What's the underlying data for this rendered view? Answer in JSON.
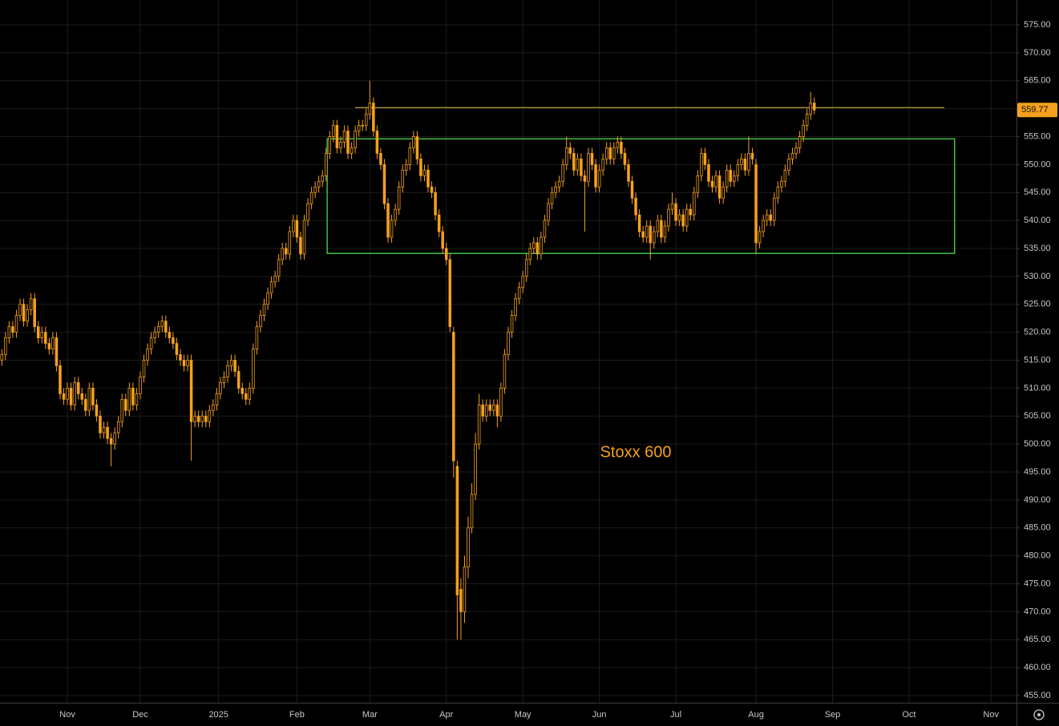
{
  "chart_data": {
    "type": "candlestick",
    "color": "#f5a01e",
    "background": "#000000",
    "grid": true,
    "grid_color": "#1c1c1c",
    "annotation": {
      "text": "Stoxx 600",
      "x": 174,
      "y": 498.4,
      "color": "#f5a01e"
    },
    "hline": {
      "value": 560.2,
      "x": [
        97,
        258.7
      ],
      "color": "#e8c43a"
    },
    "range_box": {
      "ylim": [
        534.1,
        554.6
      ],
      "x": [
        89.3,
        261.5
      ],
      "color": "#3fbf3f"
    },
    "xlim": [
      -0.5,
      278.5
    ],
    "ylim": [
      453.71,
      579.44
    ],
    "xticks": [
      {
        "value": 18,
        "label": "Nov"
      },
      {
        "value": 38,
        "label": "Dec"
      },
      {
        "value": 59.5,
        "label": "2025"
      },
      {
        "value": 81,
        "label": "Feb"
      },
      {
        "value": 101,
        "label": "Mar"
      },
      {
        "value": 122,
        "label": "Apr"
      },
      {
        "value": 143,
        "label": "May"
      },
      {
        "value": 164,
        "label": "Jun"
      },
      {
        "value": 185,
        "label": "Jul"
      },
      {
        "value": 207,
        "label": "Aug"
      },
      {
        "value": 228,
        "label": "Sep"
      },
      {
        "value": 249,
        "label": "Oct"
      },
      {
        "value": 271.5,
        "label": "Nov"
      }
    ],
    "yticks": [
      {
        "value": 455,
        "label": "455.00"
      },
      {
        "value": 460,
        "label": "460.00"
      },
      {
        "value": 465,
        "label": "465.00"
      },
      {
        "value": 470,
        "label": "470.00"
      },
      {
        "value": 475,
        "label": "475.00"
      },
      {
        "value": 480,
        "label": "480.00"
      },
      {
        "value": 485,
        "label": "485.00"
      },
      {
        "value": 490,
        "label": "490.00"
      },
      {
        "value": 495,
        "label": "495.00"
      },
      {
        "value": 500,
        "label": "500.00"
      },
      {
        "value": 505,
        "label": "505.00"
      },
      {
        "value": 510,
        "label": "510.00"
      },
      {
        "value": 515,
        "label": "515.00"
      },
      {
        "value": 520,
        "label": "520.00"
      },
      {
        "value": 525,
        "label": "525.00"
      },
      {
        "value": 530,
        "label": "530.00"
      },
      {
        "value": 535,
        "label": "535.00"
      },
      {
        "value": 540,
        "label": "540.00"
      },
      {
        "value": 545,
        "label": "545.00"
      },
      {
        "value": 550,
        "label": "550.00"
      },
      {
        "value": 555,
        "label": "555.00"
      },
      {
        "value": 560,
        "label": "560.00"
      },
      {
        "value": 565,
        "label": "565.00"
      },
      {
        "value": 570,
        "label": "570.00"
      },
      {
        "value": 575,
        "label": "575.00"
      }
    ],
    "open": [
      515,
      516,
      519,
      521,
      520,
      523,
      525,
      522,
      524,
      526,
      521,
      519,
      520,
      518,
      517,
      519,
      514,
      509,
      508,
      510,
      507,
      511,
      509,
      508,
      506,
      510,
      507,
      505,
      502,
      503,
      501,
      500,
      502,
      504,
      508,
      506,
      510,
      507,
      509,
      512,
      515,
      517,
      519,
      520,
      521,
      522,
      520,
      519,
      518,
      516,
      515,
      514,
      515,
      504,
      505,
      504,
      505,
      504,
      506,
      507,
      509,
      511,
      512,
      514,
      515,
      513,
      510,
      509,
      508,
      510,
      517,
      521,
      523,
      525,
      527,
      529,
      530,
      533,
      535,
      534,
      538,
      540,
      537,
      534,
      540,
      543,
      545,
      546,
      547,
      548,
      552,
      555,
      557,
      553,
      554,
      556,
      552,
      553,
      556,
      557,
      557,
      559,
      561,
      556,
      552,
      550,
      543,
      537,
      540,
      542,
      546,
      549,
      550,
      553,
      555,
      551,
      548,
      549,
      546,
      545,
      541,
      538,
      535,
      533,
      520,
      496,
      474,
      470,
      478,
      485,
      491,
      500,
      507,
      505,
      507,
      506,
      507,
      505,
      510,
      516,
      520,
      523,
      526,
      528,
      530,
      533,
      535,
      536,
      534,
      537,
      540,
      543,
      545,
      546,
      547,
      550,
      553,
      552,
      549,
      551,
      548,
      547,
      552,
      550,
      546,
      549,
      551,
      553,
      551,
      553,
      554,
      552,
      550,
      547,
      544,
      541,
      538,
      537,
      539,
      536,
      538,
      540,
      537,
      539,
      542,
      543,
      540,
      541,
      539,
      542,
      541,
      545,
      548,
      552,
      550,
      547,
      546,
      548,
      544,
      546,
      549,
      547,
      548,
      550,
      551,
      549,
      552,
      550,
      536,
      538,
      540,
      541,
      540,
      544,
      546,
      547,
      549,
      551,
      552,
      553,
      555,
      557,
      559,
      561
    ],
    "high": [
      517,
      520,
      522,
      522,
      524,
      526,
      526,
      525,
      527,
      527,
      522,
      521,
      521,
      519,
      520,
      520,
      515,
      510,
      511,
      511,
      512,
      512,
      510,
      509,
      511,
      511,
      508,
      506,
      504,
      504,
      502,
      503,
      505,
      509,
      509,
      511,
      511,
      510,
      513,
      516,
      518,
      520,
      521,
      522,
      523,
      523,
      521,
      520,
      519,
      517,
      516,
      516,
      516,
      506,
      506,
      506,
      506,
      507,
      508,
      510,
      512,
      513,
      515,
      516,
      516,
      514,
      511,
      510,
      511,
      518,
      522,
      524,
      526,
      528,
      530,
      531,
      534,
      536,
      536,
      539,
      541,
      541,
      538,
      541,
      544,
      546,
      547,
      548,
      549,
      553,
      556,
      558,
      558,
      555,
      557,
      557,
      554,
      557,
      558,
      558,
      560,
      565,
      562,
      557,
      553,
      551,
      544,
      541,
      543,
      547,
      550,
      551,
      554,
      556,
      556,
      552,
      550,
      550,
      547,
      546,
      542,
      539,
      536,
      534,
      521,
      497,
      476,
      480,
      487,
      493,
      502,
      509,
      508,
      508,
      508,
      508,
      508,
      511,
      517,
      521,
      524,
      527,
      529,
      531,
      534,
      536,
      537,
      537,
      538,
      541,
      544,
      546,
      547,
      548,
      551,
      555,
      554,
      553,
      552,
      552,
      549,
      553,
      553,
      551,
      550,
      552,
      554,
      554,
      554,
      555,
      555,
      553,
      551,
      548,
      545,
      542,
      539,
      540,
      540,
      539,
      541,
      541,
      540,
      543,
      545,
      544,
      542,
      542,
      543,
      543,
      546,
      549,
      553,
      553,
      551,
      548,
      549,
      549,
      547,
      550,
      550,
      549,
      551,
      552,
      552,
      555,
      553,
      551,
      539,
      541,
      542,
      542,
      545,
      547,
      548,
      550,
      552,
      553,
      554,
      556,
      558,
      560,
      563,
      562
    ],
    "low": [
      514,
      515,
      518,
      519,
      519,
      522,
      521,
      521,
      523,
      520,
      518,
      518,
      517,
      516,
      516,
      513,
      508,
      507,
      507,
      506,
      506,
      508,
      507,
      505,
      505,
      506,
      504,
      501,
      501,
      500,
      496,
      499,
      501,
      503,
      505,
      505,
      506,
      506,
      508,
      511,
      514,
      516,
      518,
      519,
      520,
      519,
      518,
      517,
      515,
      514,
      513,
      513,
      497,
      503,
      503,
      503,
      503,
      503,
      505,
      506,
      508,
      510,
      511,
      513,
      512,
      509,
      508,
      507,
      507,
      509,
      516,
      520,
      522,
      524,
      526,
      528,
      529,
      532,
      533,
      533,
      537,
      536,
      533,
      533,
      539,
      542,
      544,
      545,
      546,
      547,
      551,
      554,
      552,
      552,
      553,
      551,
      551,
      552,
      555,
      556,
      556,
      558,
      555,
      551,
      549,
      542,
      536,
      536,
      539,
      541,
      545,
      548,
      549,
      552,
      550,
      547,
      547,
      545,
      544,
      540,
      537,
      534,
      532,
      520,
      494,
      465,
      465,
      468,
      476,
      484,
      490,
      499,
      504,
      504,
      505,
      505,
      503,
      504,
      509,
      515,
      519,
      522,
      525,
      527,
      529,
      532,
      534,
      533,
      533,
      536,
      539,
      542,
      544,
      545,
      546,
      549,
      551,
      548,
      548,
      547,
      538,
      546,
      549,
      545,
      545,
      548,
      550,
      550,
      550,
      552,
      551,
      549,
      546,
      543,
      540,
      537,
      536,
      536,
      533,
      535,
      537,
      536,
      536,
      538,
      541,
      539,
      539,
      538,
      538,
      540,
      540,
      544,
      547,
      549,
      546,
      545,
      545,
      543,
      543,
      545,
      546,
      546,
      547,
      549,
      548,
      548,
      550,
      534,
      535,
      537,
      539,
      539,
      539,
      543,
      545,
      546,
      548,
      550,
      551,
      552,
      554,
      556,
      558,
      559
    ],
    "close": [
      516,
      519,
      521,
      520,
      523,
      525,
      522,
      524,
      526,
      521,
      519,
      520,
      518,
      517,
      519,
      514,
      509,
      508,
      510,
      507,
      511,
      509,
      508,
      506,
      510,
      507,
      505,
      502,
      503,
      501,
      500,
      502,
      504,
      508,
      506,
      510,
      507,
      509,
      512,
      515,
      517,
      519,
      520,
      521,
      522,
      520,
      519,
      518,
      516,
      515,
      514,
      515,
      504,
      505,
      504,
      505,
      504,
      506,
      507,
      509,
      511,
      512,
      514,
      515,
      513,
      510,
      509,
      508,
      510,
      517,
      521,
      523,
      525,
      527,
      529,
      530,
      533,
      535,
      534,
      538,
      540,
      537,
      534,
      540,
      543,
      545,
      546,
      547,
      548,
      552,
      555,
      557,
      553,
      554,
      556,
      552,
      553,
      556,
      557,
      557,
      559,
      561,
      556,
      552,
      550,
      543,
      537,
      540,
      542,
      546,
      549,
      550,
      553,
      555,
      551,
      548,
      549,
      546,
      545,
      541,
      538,
      535,
      533,
      521,
      497,
      473,
      470,
      478,
      485,
      491,
      500,
      507,
      505,
      507,
      506,
      507,
      505,
      510,
      516,
      520,
      523,
      526,
      528,
      530,
      533,
      535,
      536,
      534,
      537,
      540,
      543,
      545,
      546,
      547,
      550,
      553,
      552,
      549,
      551,
      548,
      547,
      552,
      550,
      546,
      549,
      551,
      553,
      551,
      553,
      554,
      552,
      550,
      547,
      544,
      541,
      538,
      537,
      539,
      536,
      538,
      540,
      537,
      539,
      542,
      543,
      540,
      541,
      539,
      542,
      541,
      545,
      548,
      552,
      550,
      547,
      546,
      548,
      544,
      546,
      549,
      547,
      548,
      550,
      551,
      549,
      552,
      551,
      536,
      538,
      540,
      541,
      540,
      544,
      546,
      547,
      549,
      551,
      552,
      553,
      555,
      557,
      559,
      561,
      559.77
    ]
  }
}
